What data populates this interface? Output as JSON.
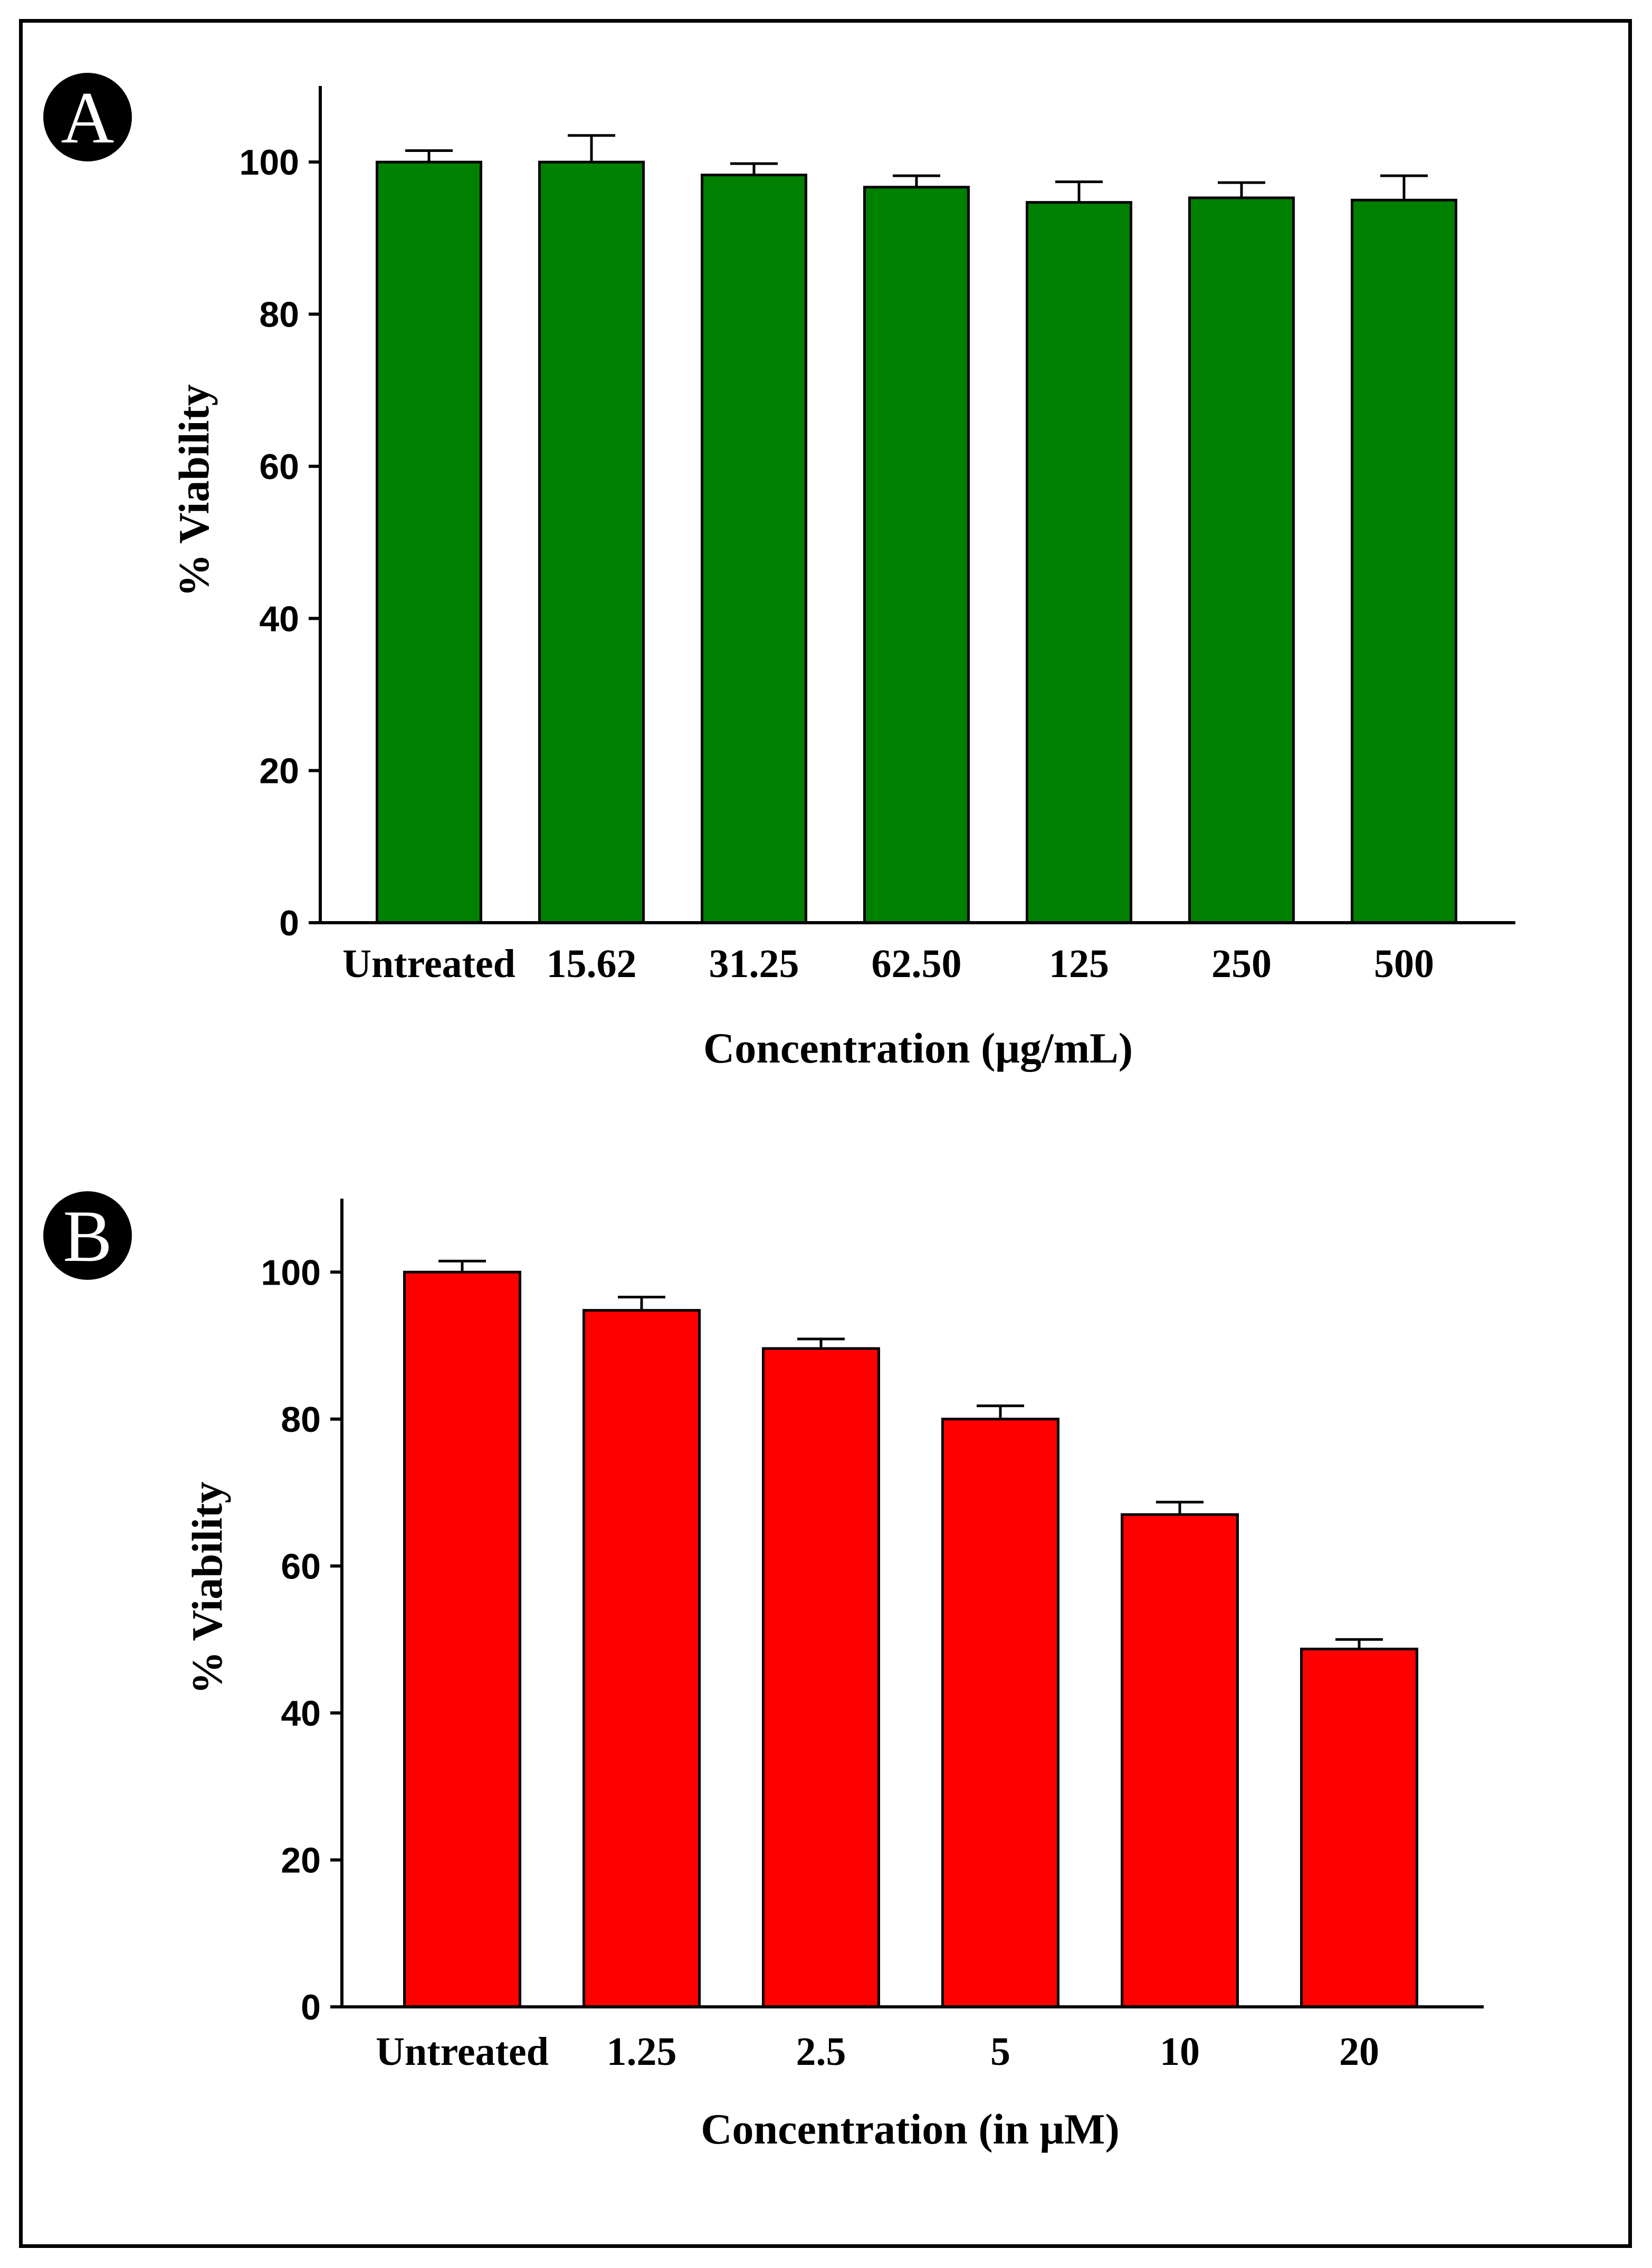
{
  "chart_data": [
    {
      "type": "bar",
      "panel_label": "A",
      "bar_color": "#008000",
      "categories": [
        "Untreated",
        "15.62",
        "31.25",
        "62.50",
        "125",
        "250",
        "500"
      ],
      "values": [
        100,
        100,
        98.3,
        96.7,
        94.7,
        95.3,
        95.0
      ],
      "errors": [
        1.5,
        3.5,
        1.5,
        1.5,
        2.7,
        2.0,
        3.2
      ],
      "title": "",
      "xlabel": "Concentration (μg/mL)",
      "ylabel": "% Viability",
      "ylim": [
        0,
        110
      ],
      "yticks": [
        0,
        20,
        40,
        60,
        80,
        100
      ],
      "grid": false
    },
    {
      "type": "bar",
      "panel_label": "B",
      "bar_color": "#ff0000",
      "categories": [
        "Untreated",
        "1.25",
        "2.5",
        "5",
        "10",
        "20"
      ],
      "values": [
        100,
        94.8,
        89.6,
        80.0,
        67.0,
        48.7
      ],
      "errors": [
        1.5,
        1.8,
        1.3,
        1.8,
        1.7,
        1.3
      ],
      "title": "",
      "xlabel": "Concentration (in μM)",
      "ylabel": "% Viability",
      "ylim": [
        0,
        110
      ],
      "yticks": [
        0,
        20,
        40,
        60,
        80,
        100
      ],
      "grid": false
    }
  ]
}
